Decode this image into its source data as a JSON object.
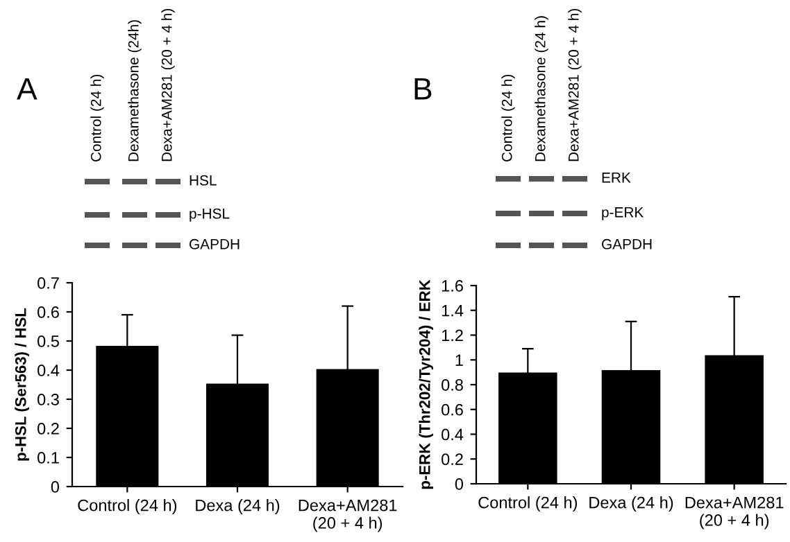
{
  "chart_data": [
    {
      "type": "bar",
      "title": "A",
      "ylabel": "p-HSL (Ser563) / HSL",
      "categories": [
        "Control (24 h)",
        "Dexa (24 h)",
        "Dexa+AM281\n(20 + 4 h)"
      ],
      "values": [
        0.48,
        0.35,
        0.4
      ],
      "errors": [
        0.11,
        0.17,
        0.22
      ],
      "color": "#000000",
      "ylim": [
        0,
        0.7
      ],
      "yticks": [
        0,
        0.1,
        0.2,
        0.3,
        0.4,
        0.5,
        0.6,
        0.7
      ],
      "grid": false,
      "annotations": [
        "Control (24 h)",
        "Dexamethasone (24h)",
        "Dexa+AM281 (20 + 4 h)",
        "HSL",
        "p-HSL",
        "GAPDH"
      ]
    },
    {
      "type": "bar",
      "title": "B",
      "ylabel": "p-ERK (Thr202/Tyr204) / ERK",
      "categories": [
        "Control (24 h)",
        "Dexa (24 h)",
        "Dexa+AM281\n(20 + 4 h)"
      ],
      "values": [
        0.89,
        0.91,
        1.03
      ],
      "errors": [
        0.2,
        0.4,
        0.48
      ],
      "color": "#000000",
      "ylim": [
        0,
        1.6
      ],
      "yticks": [
        0,
        0.2,
        0.4,
        0.6,
        0.8,
        1,
        1.2,
        1.4,
        1.6
      ],
      "grid": false,
      "annotations": [
        "Control (24 h)",
        "Dexamethasone (24 h)",
        "Dexa+AM281 (20 + 4 h)",
        "ERK",
        "p-ERK",
        "GAPDH"
      ]
    }
  ]
}
